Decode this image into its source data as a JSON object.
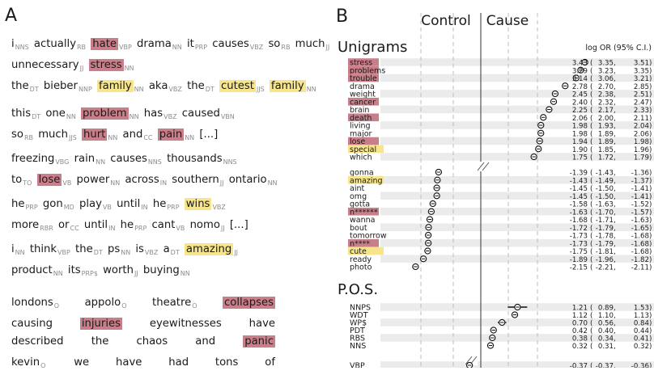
{
  "panel_a": {
    "letter": "A",
    "sentences": [
      {
        "lines": [
          [
            {
              "t": "i",
              "p": "NNS"
            },
            {
              "t": "actually",
              "p": "RB"
            },
            {
              "t": "hate",
              "p": "VBP",
              "h": "red"
            },
            {
              "t": "drama",
              "p": "NN"
            },
            {
              "t": "it",
              "p": "PRP"
            },
            {
              "t": "causes",
              "p": "VBZ"
            },
            {
              "t": "so",
              "p": "RB"
            },
            {
              "t": "much",
              "p": "JJ"
            }
          ],
          [
            {
              "t": "unnecessary",
              "p": "JJ"
            },
            {
              "t": "stress",
              "p": "NN",
              "h": "red"
            }
          ]
        ]
      },
      {
        "lines": [
          [
            {
              "t": "the",
              "p": "DT"
            },
            {
              "t": "bieber",
              "p": "NNP"
            },
            {
              "t": "family",
              "p": "NN",
              "h": "yellow"
            },
            {
              "t": "aka",
              "p": "VBZ"
            },
            {
              "t": "the",
              "p": "DT"
            },
            {
              "t": "cutest",
              "p": "JJS",
              "h": "yellow"
            },
            {
              "t": "family",
              "p": "NN",
              "h": "yellow"
            }
          ]
        ]
      },
      {
        "lines": [
          [
            {
              "t": "this",
              "p": "DT"
            },
            {
              "t": "one",
              "p": "NN"
            },
            {
              "t": "problem",
              "p": "NN",
              "h": "red"
            },
            {
              "t": "has",
              "p": "VBZ"
            },
            {
              "t": "caused",
              "p": "VBN"
            }
          ],
          [
            {
              "t": "so",
              "p": "RB"
            },
            {
              "t": "much",
              "p": "JJS"
            },
            {
              "t": "hurt",
              "p": "NN",
              "h": "red"
            },
            {
              "t": "and",
              "p": "CC"
            },
            {
              "t": "pain",
              "p": "NN",
              "h": "red"
            },
            {
              "t": "[...]"
            }
          ]
        ]
      },
      {
        "lines": [
          [
            {
              "t": "freezing",
              "p": "VBG"
            },
            {
              "t": "rain",
              "p": "NN"
            },
            {
              "t": "causes",
              "p": "NNS"
            },
            {
              "t": "thousands",
              "p": "NNS"
            }
          ],
          [
            {
              "t": "to",
              "p": "TO"
            },
            {
              "t": "lose",
              "p": "VB",
              "h": "red"
            },
            {
              "t": "power",
              "p": "NN"
            },
            {
              "t": "across",
              "p": "IN"
            },
            {
              "t": "southern",
              "p": "JJ"
            },
            {
              "t": "ontario",
              "p": "NN"
            }
          ]
        ]
      },
      {
        "lines": [
          [
            {
              "t": "he",
              "p": "PRP"
            },
            {
              "t": "gon",
              "p": "MD"
            },
            {
              "t": "play",
              "p": "VB"
            },
            {
              "t": "until",
              "p": "IN"
            },
            {
              "t": "he",
              "p": "PRP"
            },
            {
              "t": "wins",
              "p": "VBZ",
              "h": "yellow"
            }
          ],
          [
            {
              "t": "more",
              "p": "RBR"
            },
            {
              "t": "or",
              "p": "CC"
            },
            {
              "t": "until",
              "p": "IN"
            },
            {
              "t": "he",
              "p": "PRP"
            },
            {
              "t": "cant",
              "p": "VB"
            },
            {
              "t": "nomo",
              "p": "JJ"
            },
            {
              "t": "[...]"
            }
          ]
        ]
      },
      {
        "lines": [
          [
            {
              "t": "i",
              "p": "NN"
            },
            {
              "t": "think",
              "p": "VBP"
            },
            {
              "t": "the",
              "p": "DT"
            },
            {
              "t": "ps",
              "p": "NN"
            },
            {
              "t": "is",
              "p": "VBZ"
            },
            {
              "t": "a",
              "p": "DT"
            },
            {
              "t": "amazing",
              "p": "JJ",
              "h": "yellow"
            }
          ],
          [
            {
              "t": "product",
              "p": "NN"
            },
            {
              "t": "its",
              "p": "PRP$"
            },
            {
              "t": "worth",
              "p": "JJ"
            },
            {
              "t": "buying",
              "p": "NN"
            }
          ]
        ]
      },
      {
        "justify": true,
        "lines": [
          [
            {
              "t": "londons",
              "p": "O"
            },
            {
              "t": "appolo",
              "p": "O"
            },
            {
              "t": "theatre",
              "p": "O"
            },
            {
              "t": "collapses",
              "h": "red"
            }
          ],
          [
            {
              "t": "causing"
            },
            {
              "t": "injuries",
              "h": "red"
            },
            {
              "t": "eyewitnesses"
            },
            {
              "t": "have"
            }
          ],
          [
            {
              "t": "described"
            },
            {
              "t": "the"
            },
            {
              "t": "chaos"
            },
            {
              "t": "and"
            },
            {
              "t": "panic",
              "h": "red"
            }
          ]
        ]
      },
      {
        "justify": true,
        "lines": [
          [
            {
              "t": "kevin",
              "p": "O"
            },
            {
              "t": "we"
            },
            {
              "t": "have"
            },
            {
              "t": "had"
            },
            {
              "t": "tons"
            },
            {
              "t": "of"
            }
          ]
        ]
      }
    ]
  },
  "panel_b": {
    "letter": "B",
    "control_label": "Control",
    "cause_label": "Cause",
    "logor_header": "log OR (95% C.I.)",
    "chart_data": {
      "type": "forest",
      "xlabel": "",
      "groups": [
        {
          "title": "Unigrams",
          "rows": [
            {
              "label": "stress",
              "h": "red",
              "est": "3.43",
              "lo": "3.35",
              "hi": "3.51"
            },
            {
              "label": "problems",
              "h": "red",
              "est": "3.29",
              "lo": "3.23",
              "hi": "3.35"
            },
            {
              "label": "trouble",
              "h": "red",
              "est": "3.14",
              "lo": "3.06",
              "hi": "3.21"
            },
            {
              "label": "drama",
              "est": "2.78",
              "lo": "2.70",
              "hi": "2.85"
            },
            {
              "label": "weight",
              "est": "2.45",
              "lo": "2.38",
              "hi": "2.51"
            },
            {
              "label": "cancer",
              "h": "red",
              "est": "2.40",
              "lo": "2.32",
              "hi": "2.47"
            },
            {
              "label": "brain",
              "est": "2.25",
              "lo": "2.17",
              "hi": "2.33"
            },
            {
              "label": "death",
              "h": "red",
              "est": "2.06",
              "lo": "2.00",
              "hi": "2.11"
            },
            {
              "label": "living",
              "est": "1.98",
              "lo": "1.93",
              "hi": "2.04"
            },
            {
              "label": "major",
              "est": "1.98",
              "lo": "1.89",
              "hi": "2.06"
            },
            {
              "label": "lose",
              "h": "red",
              "est": "1.94",
              "lo": "1.89",
              "hi": "1.98"
            },
            {
              "label": "special",
              "h": "yellow",
              "est": "1.90",
              "lo": "1.85",
              "hi": "1.96"
            },
            {
              "label": "which",
              "est": "1.75",
              "lo": "1.72",
              "hi": "1.79"
            },
            {
              "label": "gonna",
              "est": "-1.39",
              "lo": "-1.43",
              "hi": "-1.36"
            },
            {
              "label": "amazing",
              "h": "yellow",
              "est": "-1.43",
              "lo": "-1.49",
              "hi": "-1.37"
            },
            {
              "label": "aint",
              "est": "-1.45",
              "lo": "-1.50",
              "hi": "-1.41"
            },
            {
              "label": "omg",
              "est": "-1.45",
              "lo": "-1.50",
              "hi": "-1.41"
            },
            {
              "label": "gotta",
              "est": "-1.58",
              "lo": "-1.63",
              "hi": "-1.52"
            },
            {
              "label": "n******",
              "h": "red",
              "est": "-1.63",
              "lo": "-1.70",
              "hi": "-1.57"
            },
            {
              "label": "wanna",
              "est": "-1.68",
              "lo": "-1.71",
              "hi": "-1.63"
            },
            {
              "label": "bout",
              "est": "-1.72",
              "lo": "-1.79",
              "hi": "-1.65"
            },
            {
              "label": "tomorrow",
              "est": "-1.73",
              "lo": "-1.78",
              "hi": "-1.68"
            },
            {
              "label": "n****",
              "h": "red",
              "est": "-1.73",
              "lo": "-1.79",
              "hi": "-1.68"
            },
            {
              "label": "cute",
              "h": "yellow",
              "est": "-1.75",
              "lo": "-1.81",
              "hi": "-1.68"
            },
            {
              "label": "ready",
              "est": "-1.89",
              "lo": "-1.96",
              "hi": "-1.82"
            },
            {
              "label": "photo",
              "est": "-2.15",
              "lo": "-2.21",
              "hi": "-2.11"
            }
          ]
        },
        {
          "title": "P.O.S.",
          "rows": [
            {
              "label": "NNPS",
              "est": "1.21",
              "lo": "0.89",
              "hi": "1.53"
            },
            {
              "label": "WDT",
              "est": "1.12",
              "lo": "1.10",
              "hi": "1.13"
            },
            {
              "label": "WP$",
              "est": "0.70",
              "lo": "0.56",
              "hi": "0.84"
            },
            {
              "label": "PDT",
              "est": "0.42",
              "lo": "0.40",
              "hi": "0.44"
            },
            {
              "label": "RBS",
              "est": "0.38",
              "lo": "0.34",
              "hi": "0.41"
            },
            {
              "label": "NNS",
              "est": "0.32",
              "lo": "0.31",
              "hi": "0.32"
            },
            {
              "label": "VBP",
              "est": "-0.37",
              "lo": "-0.37",
              "hi": "-0.36"
            }
          ]
        }
      ]
    },
    "colors": {
      "red": "#c97f8a",
      "yellow": "#f6e58d",
      "row_band": "#ebebeb",
      "text": "#1a1a1a",
      "tag": "#8c8c8c"
    }
  }
}
